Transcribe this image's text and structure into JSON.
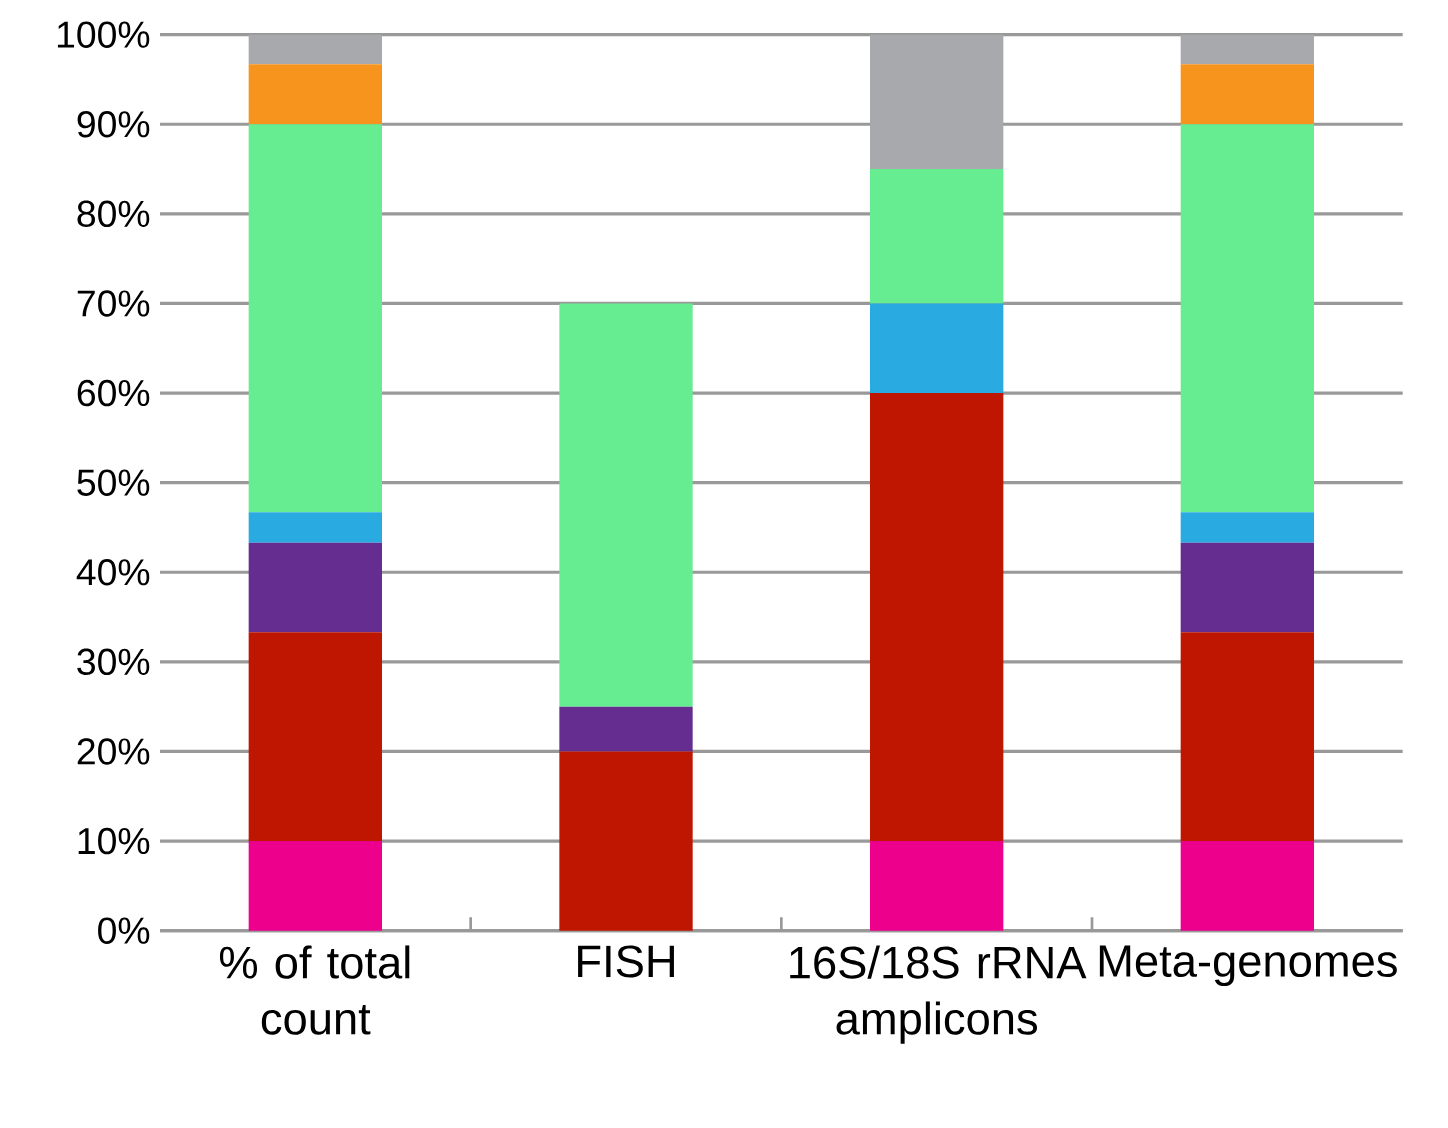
{
  "chart_data": {
    "type": "bar",
    "stacked": true,
    "grid": "y",
    "categories": [
      "% of total count",
      "FISH",
      "16S/18S rRNA amplicons",
      "Meta-genomes"
    ],
    "series": [
      {
        "color": "#ec008c",
        "values": [
          10,
          0,
          10,
          10
        ]
      },
      {
        "color": "#be1600",
        "values": [
          23.3,
          20,
          50,
          23.3
        ]
      },
      {
        "color": "#662d91",
        "values": [
          10,
          5,
          0,
          10
        ]
      },
      {
        "color": "#29abe2",
        "values": [
          3.4,
          0,
          10,
          3.4
        ]
      },
      {
        "color": "#66ec91",
        "values": [
          43.3,
          45,
          15,
          43.3
        ]
      },
      {
        "color": "#f7941d",
        "values": [
          6.7,
          0,
          0,
          6.7
        ]
      },
      {
        "color": "#a7a9ac",
        "values": [
          3.3,
          0,
          15,
          3.3
        ]
      }
    ],
    "ylim": [
      0,
      100
    ],
    "yticks": [
      {
        "value": 0,
        "label": "0%"
      },
      {
        "value": 10,
        "label": "10%"
      },
      {
        "value": 20,
        "label": "20%"
      },
      {
        "value": 30,
        "label": "30%"
      },
      {
        "value": 40,
        "label": "40%"
      },
      {
        "value": 50,
        "label": "50%"
      },
      {
        "value": 60,
        "label": "60%"
      },
      {
        "value": 70,
        "label": "70%"
      },
      {
        "value": 80,
        "label": "80%"
      },
      {
        "value": 90,
        "label": "90%"
      },
      {
        "value": 100,
        "label": "100%"
      }
    ]
  }
}
